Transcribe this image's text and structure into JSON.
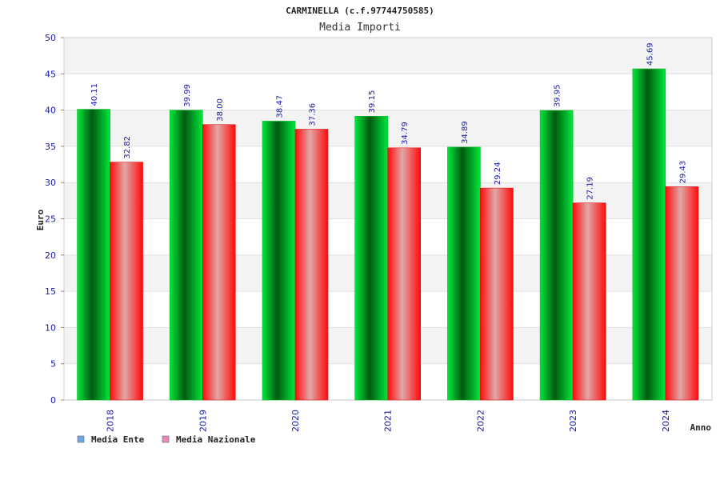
{
  "chart_data": {
    "type": "bar",
    "title": "CARMINELLA (c.f.97744750585)",
    "subtitle": "Media Importi",
    "xlabel": "Anno",
    "ylabel": "Euro",
    "ylim": [
      0,
      50
    ],
    "yticks": [
      0,
      5,
      10,
      15,
      20,
      25,
      30,
      35,
      40,
      45,
      50
    ],
    "grid": true,
    "legend_position": "bottom-left",
    "categories": [
      "2018",
      "2019",
      "2020",
      "2021",
      "2022",
      "2023",
      "2024"
    ],
    "series": [
      {
        "name": "Media Ente",
        "values": [
          40.11,
          39.99,
          38.47,
          39.15,
          34.89,
          39.95,
          45.69
        ],
        "labels": [
          "40.11",
          "39.99",
          "38.47",
          "39.15",
          "34.89",
          "39.95",
          "45.69"
        ],
        "color": "#00cc22",
        "legend_color": "#6fa8e8"
      },
      {
        "name": "Media Nazionale",
        "values": [
          32.82,
          38.0,
          37.36,
          34.79,
          29.24,
          27.19,
          29.43
        ],
        "labels": [
          "32.82",
          "38.00",
          "37.36",
          "34.79",
          "29.24",
          "27.19",
          "29.43"
        ],
        "color": "#ff1a1a",
        "legend_color": "#e88ab8"
      }
    ]
  }
}
